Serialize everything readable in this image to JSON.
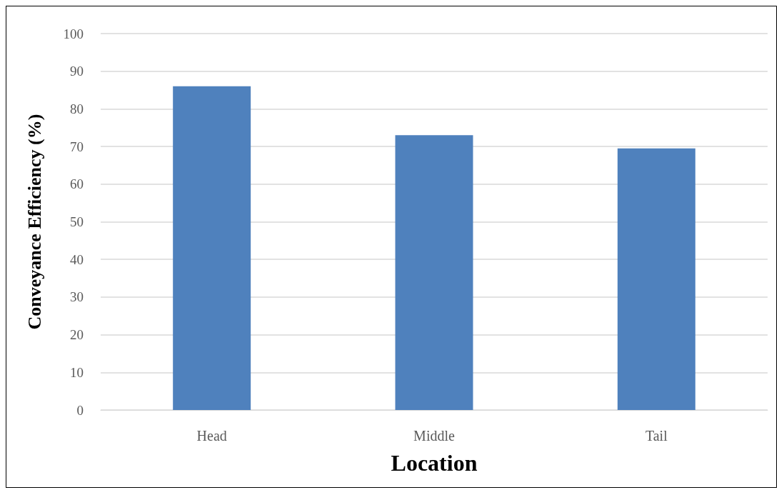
{
  "chart_data": {
    "type": "bar",
    "xlabel": "Location",
    "ylabel": "Conveyance Efficiency (%)",
    "categories": [
      "Head",
      "Middle",
      "Tail"
    ],
    "values": [
      86,
      73,
      69.5
    ],
    "color": "#4f81bd",
    "ylim": [
      0,
      100
    ],
    "yticks": [
      0,
      10,
      20,
      30,
      40,
      50,
      60,
      70,
      80,
      90,
      100
    ],
    "grid": "y"
  }
}
